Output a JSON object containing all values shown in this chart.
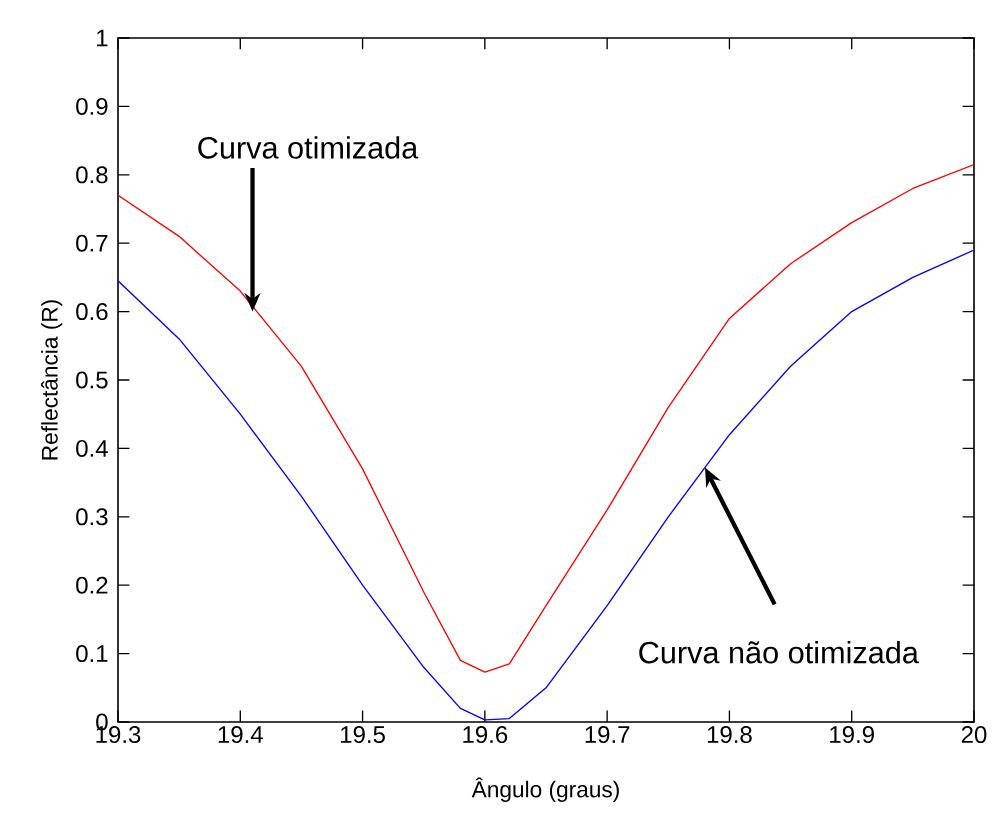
{
  "chart_data": {
    "type": "line",
    "xlabel": "Ângulo (graus)",
    "ylabel": "Reflectância (R)",
    "xlim": [
      19.3,
      20
    ],
    "ylim": [
      0,
      1
    ],
    "xticks": [
      19.3,
      19.4,
      19.5,
      19.6,
      19.7,
      19.8,
      19.9,
      {
        "value": 20,
        "label": "20"
      }
    ],
    "yticks": [
      0,
      0.1,
      0.2,
      0.3,
      0.4,
      0.5,
      0.6,
      0.7,
      0.8,
      0.9,
      1
    ],
    "grid": false,
    "marker": "none",
    "line_style": "solid",
    "series": [
      {
        "color": "#ff0000",
        "x": [
          19.3,
          19.35,
          19.4,
          19.45,
          19.5,
          19.55,
          19.58,
          19.6,
          19.62,
          19.65,
          19.7,
          19.75,
          19.8,
          19.85,
          19.9,
          19.95,
          20
        ],
        "values": [
          0.77,
          0.71,
          0.63,
          0.52,
          0.37,
          0.19,
          0.09,
          0.073,
          0.085,
          0.17,
          0.31,
          0.46,
          0.59,
          0.67,
          0.73,
          0.78,
          0.815
        ]
      },
      {
        "color": "#0000ff",
        "x": [
          19.3,
          19.35,
          19.4,
          19.45,
          19.5,
          19.55,
          19.58,
          19.6,
          19.62,
          19.65,
          19.7,
          19.75,
          19.8,
          19.85,
          19.9,
          19.95,
          20
        ],
        "values": [
          0.645,
          0.56,
          0.45,
          0.33,
          0.2,
          0.08,
          0.02,
          0.003,
          0.005,
          0.05,
          0.17,
          0.3,
          0.42,
          0.52,
          0.6,
          0.65,
          0.69
        ]
      }
    ],
    "annotations": [
      {
        "text": "Curva otimizada",
        "x": 19.41,
        "y": 0.6
      },
      {
        "text": "Curva não  otimizada",
        "x": 19.78,
        "y": 0.372
      }
    ]
  }
}
